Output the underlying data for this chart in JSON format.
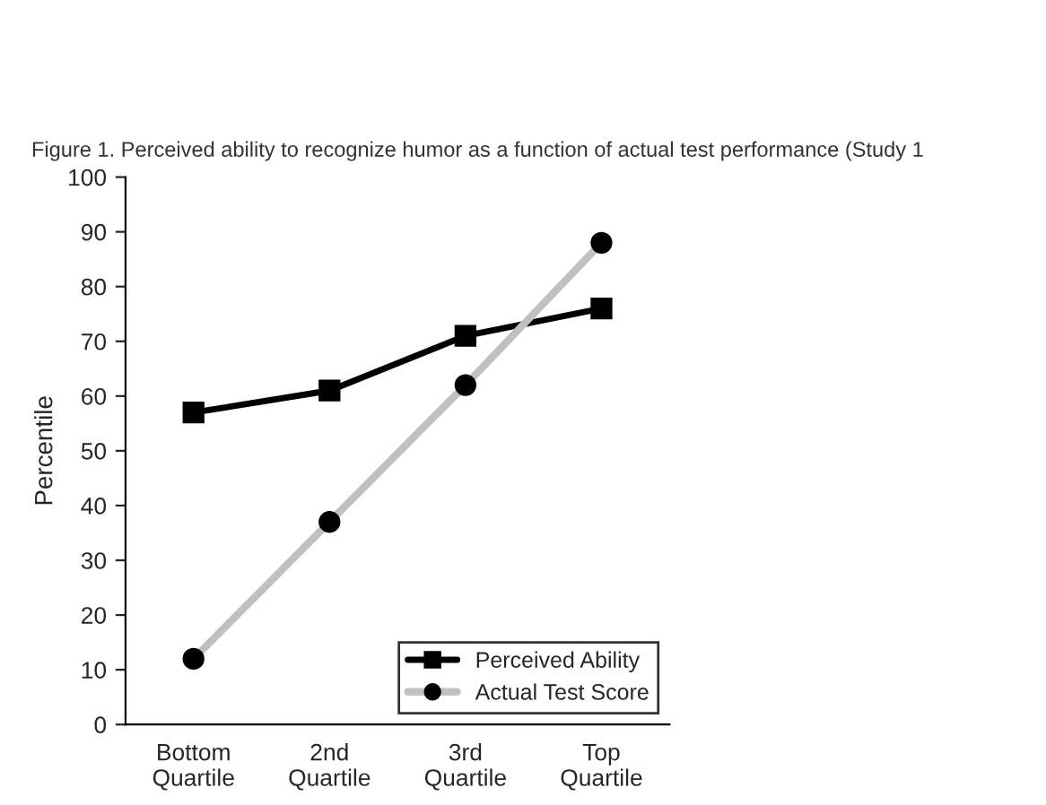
{
  "chart_data": {
    "type": "line",
    "title": "Figure 1. Perceived ability to recognize humor as a function of actual test performance (Study 1",
    "ylabel": "Percentile",
    "categories": [
      "Bottom\nQuartile",
      "2nd\nQuartile",
      "3rd\nQuartile",
      "Top\nQuartile"
    ],
    "series": [
      {
        "name": "Perceived Ability",
        "color": "#000000",
        "marker": "square",
        "values": [
          57,
          61,
          71,
          76
        ]
      },
      {
        "name": "Actual Test Score",
        "color": "#c0c0c0",
        "marker": "circle",
        "values": [
          12,
          37,
          62,
          88
        ]
      }
    ],
    "ylim": [
      0,
      100
    ],
    "yticks": [
      0,
      10,
      20,
      30,
      40,
      50,
      60,
      70,
      80,
      90,
      100
    ],
    "grid": false,
    "legend": "bottom right",
    "line_style": "solid"
  }
}
